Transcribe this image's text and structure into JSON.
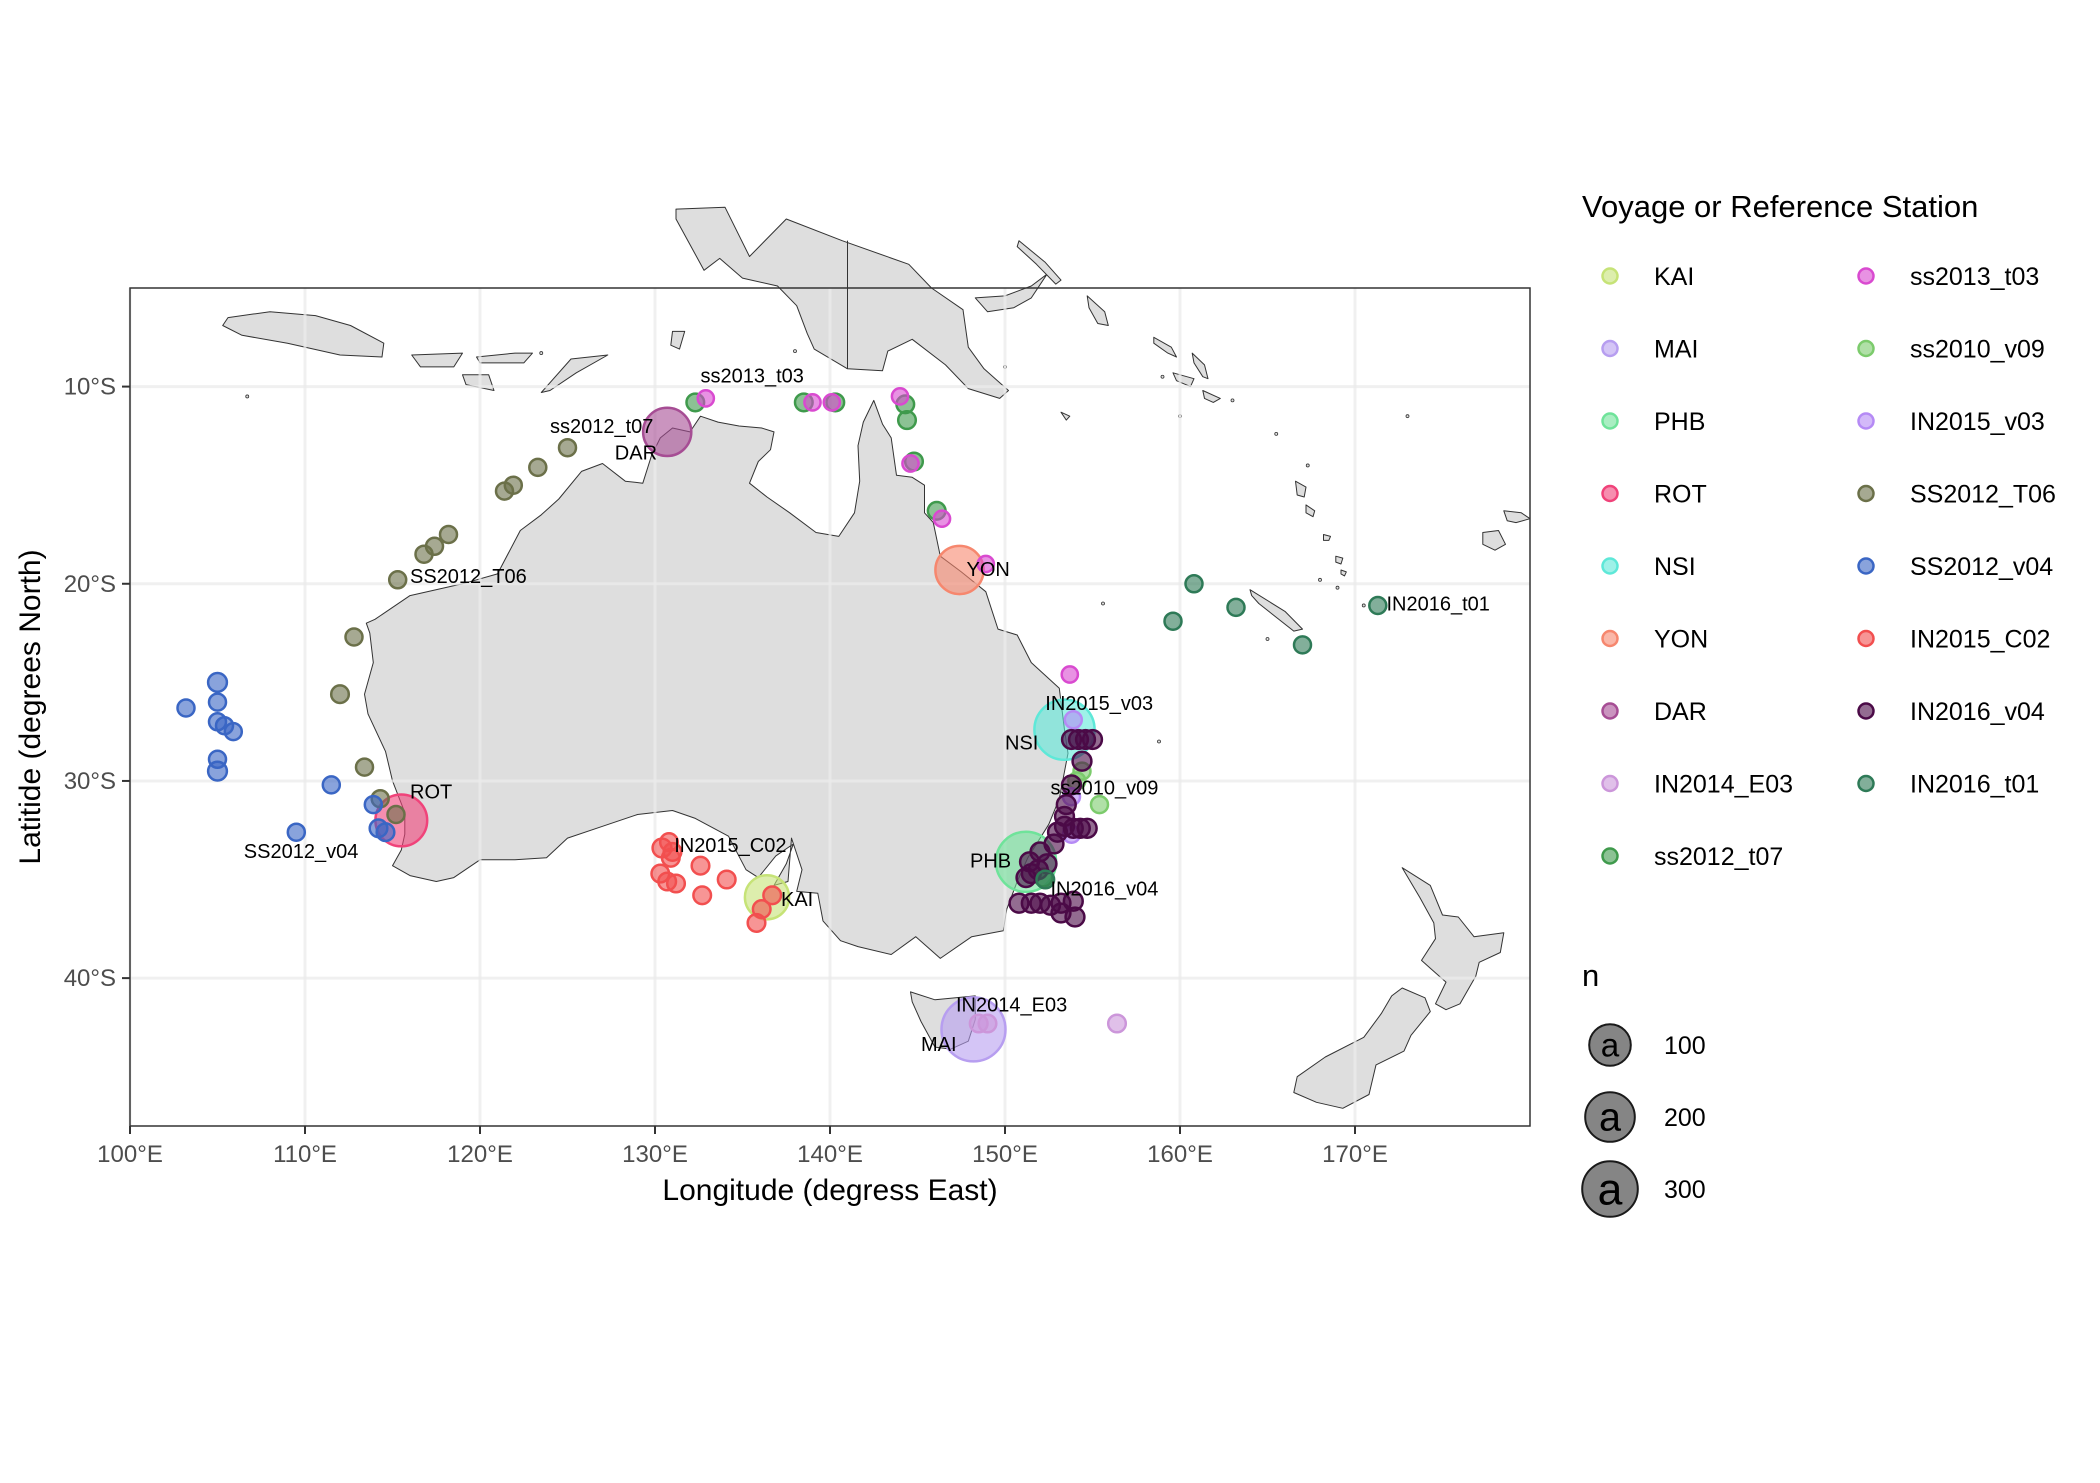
{
  "chart_data": {
    "type": "scatter",
    "xlabel": "Longitude (degress East)",
    "ylabel": "Latitide (degrees North)",
    "xlim": [
      100,
      180
    ],
    "ylim": [
      -47.5,
      -5
    ],
    "x_ticks": [
      100,
      110,
      120,
      130,
      140,
      150,
      160,
      170
    ],
    "x_tick_labels": [
      "100°E",
      "110°E",
      "120°E",
      "130°E",
      "140°E",
      "150°E",
      "160°E",
      "170°E"
    ],
    "y_ticks": [
      -10,
      -20,
      -30,
      -40
    ],
    "y_tick_labels": [
      "10°S",
      "20°S",
      "30°S",
      "40°S"
    ],
    "grid": true,
    "legend_position": "right",
    "legend": {
      "color_title": "Voyage or Reference Station",
      "size_title": "n",
      "size_entries": [
        {
          "label": "100",
          "n": 100
        },
        {
          "label": "200",
          "n": 200
        },
        {
          "label": "300",
          "n": 300
        }
      ],
      "size_glyph": "a"
    },
    "series": [
      {
        "name": "KAI",
        "color": "#c6e377",
        "points": [
          [
            136.4,
            -35.9,
            120
          ]
        ]
      },
      {
        "name": "MAI",
        "color": "#b79ef0",
        "points": [
          [
            148.2,
            -42.6,
            300
          ]
        ]
      },
      {
        "name": "PHB",
        "color": "#6fe39a",
        "points": [
          [
            151.2,
            -34.1,
            260
          ]
        ]
      },
      {
        "name": "ROT",
        "color": "#f0437a",
        "points": [
          [
            115.5,
            -32.0,
            180
          ]
        ]
      },
      {
        "name": "NSI",
        "color": "#5ee8d8",
        "points": [
          [
            153.4,
            -27.4,
            260
          ]
        ]
      },
      {
        "name": "YON",
        "color": "#f6876e",
        "points": [
          [
            147.4,
            -19.3,
            150
          ]
        ]
      },
      {
        "name": "DAR",
        "color": "#a64d94",
        "points": [
          [
            130.7,
            -12.3,
            150
          ]
        ]
      },
      {
        "name": "IN2014_E03",
        "color": "#cc96da",
        "points": [
          [
            148.5,
            -42.3,
            6
          ],
          [
            149.0,
            -42.3,
            6
          ],
          [
            156.4,
            -42.3,
            6
          ]
        ]
      },
      {
        "name": "ss2012_t07",
        "color": "#3f9a4c",
        "points": [
          [
            132.3,
            -10.8,
            6
          ],
          [
            138.5,
            -10.8,
            6
          ],
          [
            140.3,
            -10.8,
            6
          ],
          [
            144.3,
            -10.9,
            6
          ],
          [
            144.4,
            -11.7,
            6
          ],
          [
            144.8,
            -13.8,
            6
          ],
          [
            146.1,
            -16.3,
            6
          ],
          [
            152.2,
            -34.9,
            6
          ]
        ]
      },
      {
        "name": "ss2013_t03",
        "color": "#d94ad0",
        "points": [
          [
            132.9,
            -10.6,
            4
          ],
          [
            139.0,
            -10.8,
            4
          ],
          [
            140.1,
            -10.8,
            4
          ],
          [
            144.0,
            -10.5,
            4
          ],
          [
            144.6,
            -13.9,
            4
          ],
          [
            146.4,
            -16.7,
            4
          ],
          [
            148.9,
            -19.0,
            4
          ],
          [
            153.7,
            -24.6,
            4
          ]
        ]
      },
      {
        "name": "ss2010_v09",
        "color": "#7ccb6c",
        "points": [
          [
            154.1,
            -30.0,
            5
          ],
          [
            154.4,
            -29.5,
            5
          ],
          [
            155.4,
            -31.2,
            5
          ]
        ]
      },
      {
        "name": "IN2015_v03",
        "color": "#b58af5",
        "points": [
          [
            153.9,
            -26.9,
            5
          ],
          [
            153.8,
            -30.8,
            5
          ],
          [
            153.8,
            -32.7,
            5
          ]
        ]
      },
      {
        "name": "SS2012_T06",
        "color": "#6b7049",
        "points": [
          [
            125.0,
            -13.1,
            5
          ],
          [
            123.3,
            -14.1,
            5
          ],
          [
            121.9,
            -15.0,
            5
          ],
          [
            121.4,
            -15.3,
            5
          ],
          [
            118.2,
            -17.5,
            5
          ],
          [
            117.4,
            -18.1,
            5
          ],
          [
            116.8,
            -18.5,
            5
          ],
          [
            115.3,
            -19.8,
            5
          ],
          [
            112.8,
            -22.7,
            5
          ],
          [
            112.0,
            -25.6,
            6
          ],
          [
            113.4,
            -29.3,
            5
          ],
          [
            114.3,
            -30.9,
            5
          ],
          [
            115.2,
            -31.7,
            5
          ]
        ]
      },
      {
        "name": "SS2012_v04",
        "color": "#3a66c4",
        "points": [
          [
            103.2,
            -26.3,
            5
          ],
          [
            105.0,
            -25.0,
            8
          ],
          [
            105.0,
            -26.0,
            5
          ],
          [
            105.0,
            -27.0,
            5
          ],
          [
            105.4,
            -27.2,
            5
          ],
          [
            105.9,
            -27.5,
            5
          ],
          [
            105.0,
            -28.9,
            5
          ],
          [
            105.0,
            -29.5,
            8
          ],
          [
            111.5,
            -30.2,
            5
          ],
          [
            109.5,
            -32.6,
            5
          ],
          [
            113.9,
            -31.2,
            5
          ],
          [
            114.2,
            -32.4,
            6
          ],
          [
            114.6,
            -32.6,
            6
          ]
        ]
      },
      {
        "name": "IN2015_C02",
        "color": "#f24f4f",
        "points": [
          [
            130.4,
            -33.4,
            8
          ],
          [
            130.8,
            -33.1,
            6
          ],
          [
            131.0,
            -33.6,
            6
          ],
          [
            130.9,
            -33.9,
            6
          ],
          [
            132.6,
            -34.3,
            6
          ],
          [
            134.1,
            -35.0,
            6
          ],
          [
            130.3,
            -34.7,
            6
          ],
          [
            130.7,
            -35.1,
            6
          ],
          [
            131.2,
            -35.2,
            6
          ],
          [
            132.7,
            -35.8,
            6
          ],
          [
            135.8,
            -37.2,
            6
          ],
          [
            136.1,
            -36.5,
            6
          ],
          [
            136.7,
            -35.8,
            6
          ]
        ]
      },
      {
        "name": "IN2016_v04",
        "color": "#4b0a47",
        "points": [
          [
            153.8,
            -27.9,
            8
          ],
          [
            154.2,
            -27.9,
            8
          ],
          [
            154.6,
            -27.9,
            8
          ],
          [
            155.0,
            -27.9,
            8
          ],
          [
            154.4,
            -29.0,
            8
          ],
          [
            153.8,
            -30.2,
            8
          ],
          [
            153.5,
            -31.2,
            8
          ],
          [
            153.4,
            -31.8,
            8
          ],
          [
            153.4,
            -32.3,
            8
          ],
          [
            153.0,
            -32.6,
            8
          ],
          [
            152.8,
            -33.2,
            8
          ],
          [
            152.0,
            -33.6,
            8
          ],
          [
            151.4,
            -34.1,
            8
          ],
          [
            151.9,
            -34.5,
            8
          ],
          [
            151.5,
            -34.7,
            8
          ],
          [
            152.4,
            -34.2,
            8
          ],
          [
            151.2,
            -34.9,
            8
          ],
          [
            153.9,
            -32.4,
            8
          ],
          [
            154.3,
            -32.4,
            8
          ],
          [
            154.7,
            -32.4,
            8
          ],
          [
            150.8,
            -36.2,
            8
          ],
          [
            151.5,
            -36.2,
            8
          ],
          [
            152.0,
            -36.2,
            8
          ],
          [
            152.6,
            -36.3,
            8
          ],
          [
            153.2,
            -36.2,
            8
          ],
          [
            153.9,
            -36.1,
            8
          ],
          [
            153.2,
            -36.7,
            8
          ],
          [
            154.0,
            -36.9,
            8
          ]
        ]
      },
      {
        "name": "IN2016_t01",
        "color": "#2e7a57",
        "points": [
          [
            159.6,
            -21.9,
            5
          ],
          [
            160.8,
            -20.0,
            5
          ],
          [
            163.2,
            -21.2,
            5
          ],
          [
            167.0,
            -23.1,
            5
          ],
          [
            171.3,
            -21.1,
            5
          ],
          [
            152.3,
            -35.0,
            6
          ]
        ]
      }
    ],
    "annotations": [
      {
        "text": "ROT",
        "x": 116.0,
        "y": -30.9
      },
      {
        "text": "SS2012_v04",
        "x": 106.5,
        "y": -33.9
      },
      {
        "text": "SS2012_T06",
        "x": 116.0,
        "y": -19.95
      },
      {
        "text": "DAR",
        "x": 127.7,
        "y": -13.7
      },
      {
        "text": "ss2012_t07",
        "x": 124.0,
        "y": -12.35
      },
      {
        "text": "ss2013_t03",
        "x": 132.6,
        "y": -9.8
      },
      {
        "text": "YON",
        "x": 147.8,
        "y": -19.6
      },
      {
        "text": "IN2016_t01",
        "x": 171.8,
        "y": -21.35
      },
      {
        "text": "IN2015_v03",
        "x": 152.3,
        "y": -26.4
      },
      {
        "text": "NSI",
        "x": 150.0,
        "y": -28.4
      },
      {
        "text": "ss2010_v09",
        "x": 152.6,
        "y": -30.7
      },
      {
        "text": "IN2015_C02",
        "x": 131.1,
        "y": -33.6
      },
      {
        "text": "PHB",
        "x": 148.0,
        "y": -34.4
      },
      {
        "text": "IN2016_v04",
        "x": 152.6,
        "y": -35.8
      },
      {
        "text": "KAI",
        "x": 137.2,
        "y": -36.35
      },
      {
        "text": "IN2014_E03",
        "x": 147.2,
        "y": -41.7
      },
      {
        "text": "MAI",
        "x": 145.2,
        "y": -43.7
      }
    ]
  }
}
